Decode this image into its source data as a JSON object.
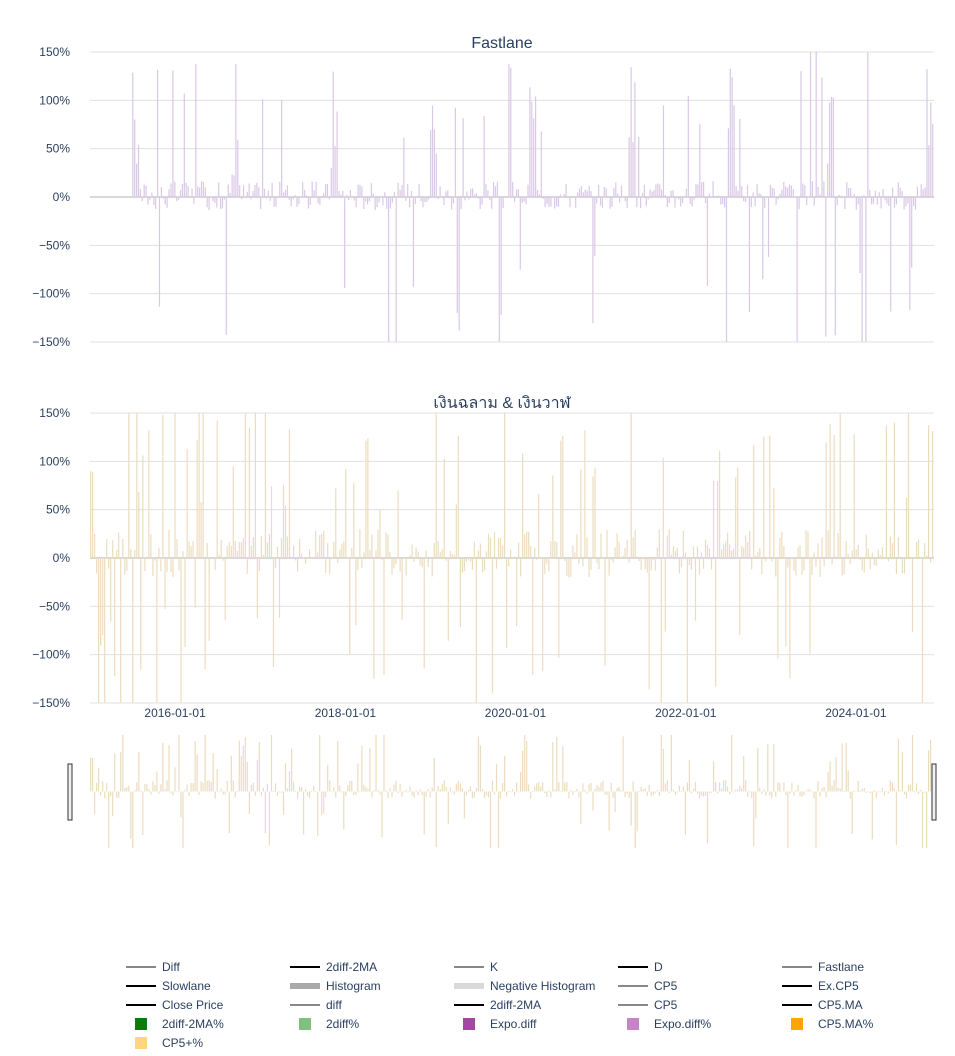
{
  "chart_data": [
    {
      "type": "bar",
      "title": "Fastlane",
      "series": [
        {
          "name": "Fastlane",
          "color": "#d9c8e6"
        }
      ],
      "ylim": [
        -150,
        150
      ],
      "yticks": [
        "150%",
        "100%",
        "50%",
        "0%",
        "−50%",
        "−100%",
        "−150%"
      ],
      "ytick_values": [
        150,
        100,
        50,
        0,
        -50,
        -100,
        -150
      ],
      "x_start": "2015-01-01",
      "x_end": "2024-12-01",
      "data_start": "2015-07-01",
      "grid": true
    },
    {
      "type": "bar",
      "title": "เงินฉลาม & เงินวาฬ",
      "series": [
        {
          "name": "CP5+%",
          "color": "#ecdcbf"
        }
      ],
      "ylim": [
        -150,
        150
      ],
      "yticks": [
        "150%",
        "100%",
        "50%",
        "0%",
        "−50%",
        "−100%",
        "−150%"
      ],
      "ytick_values": [
        150,
        100,
        50,
        0,
        -50,
        -100,
        -150
      ],
      "xticks": [
        "2016-01-01",
        "2018-01-01",
        "2020-01-01",
        "2022-01-01",
        "2024-01-01"
      ],
      "x_start": "2015-01-01",
      "x_end": "2024-12-01",
      "grid": true
    }
  ],
  "range_slider": {
    "label": "range-slider"
  },
  "legend": [
    {
      "label": "Diff",
      "style": "line",
      "color": "#888888"
    },
    {
      "label": "2diff-2MA",
      "style": "line",
      "color": "#000000"
    },
    {
      "label": "K",
      "style": "line",
      "color": "#888888"
    },
    {
      "label": "D",
      "style": "line",
      "color": "#000000"
    },
    {
      "label": "Fastlane",
      "style": "line",
      "color": "#888888"
    },
    {
      "label": "Slowlane",
      "style": "line",
      "color": "#000000"
    },
    {
      "label": "Histogram",
      "style": "thick",
      "color": "#aaaaaa"
    },
    {
      "label": "Negative Histogram",
      "style": "thick",
      "color": "#d9d9d9"
    },
    {
      "label": "CP5",
      "style": "line",
      "color": "#888888"
    },
    {
      "label": "Ex.CP5",
      "style": "line",
      "color": "#000000"
    },
    {
      "label": "Close Price",
      "style": "line",
      "color": "#000000"
    },
    {
      "label": "diff",
      "style": "line",
      "color": "#888888"
    },
    {
      "label": "2diff-2MA",
      "style": "line",
      "color": "#000000"
    },
    {
      "label": "CP5",
      "style": "line",
      "color": "#888888"
    },
    {
      "label": "CP5.MA",
      "style": "line",
      "color": "#000000"
    },
    {
      "label": "2diff-2MA%",
      "style": "box",
      "color": "#0a7a0a"
    },
    {
      "label": "2diff%",
      "style": "box",
      "color": "#7fbf7f"
    },
    {
      "label": "Expo.diff",
      "style": "box",
      "color": "#a347a3"
    },
    {
      "label": "Expo.diff%",
      "style": "box",
      "color": "#c783c7"
    },
    {
      "label": "CP5.MA%",
      "style": "box",
      "color": "#ffa500"
    },
    {
      "label": "CP5+%",
      "style": "box",
      "color": "#ffd580"
    }
  ]
}
